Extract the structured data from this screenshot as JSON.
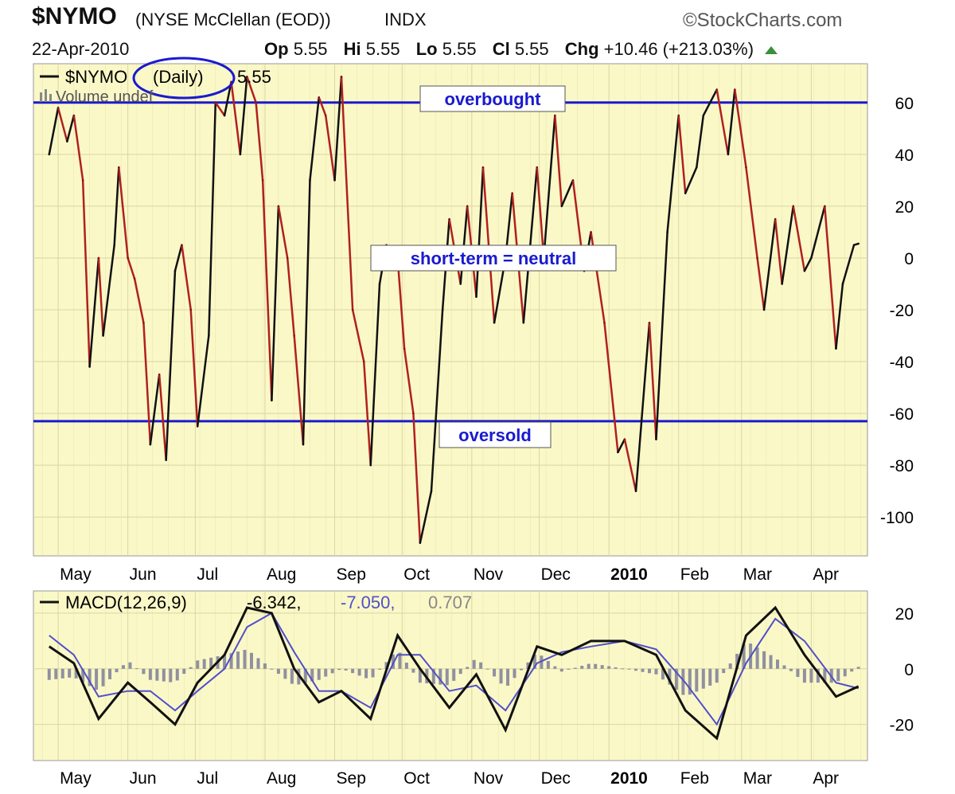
{
  "header": {
    "symbol": "$NYMO",
    "description": "(NYSE McClellan (EOD))",
    "exchange": "INDX",
    "brand": "©StockCharts.com",
    "date": "22-Apr-2010",
    "open_label": "Op",
    "open": "5.55",
    "high_label": "Hi",
    "high": "5.55",
    "low_label": "Lo",
    "low": "5.55",
    "close_label": "Cl",
    "close": "5.55",
    "change_label": "Chg",
    "change": "+10.46 (+213.03%)"
  },
  "colors": {
    "panel_bg": "#fbf8c8",
    "grid": "#d9d6a0",
    "up": "#111111",
    "down": "#b02020",
    "band": "#1a1ad0",
    "macd": "#111111",
    "signal": "#5050c8",
    "hist": "#9090a0",
    "annot_text": "#1a1ad0",
    "circle": "#1a1ad0"
  },
  "icons": {
    "up_arrow": "triangle-up-icon"
  },
  "chart_data": [
    {
      "type": "line",
      "legend_series": "$NYMO",
      "legend_period": "(Daily)",
      "legend_value": "5.55",
      "volume_legend": "Volume undef",
      "x": [
        "2009-04-27",
        "2009-05-01",
        "2009-05-05",
        "2009-05-08",
        "2009-05-12",
        "2009-05-15",
        "2009-05-19",
        "2009-05-21",
        "2009-05-26",
        "2009-05-28",
        "2009-06-01",
        "2009-06-04",
        "2009-06-08",
        "2009-06-11",
        "2009-06-15",
        "2009-06-18",
        "2009-06-22",
        "2009-06-25",
        "2009-06-29",
        "2009-07-02",
        "2009-07-07",
        "2009-07-10",
        "2009-07-14",
        "2009-07-17",
        "2009-07-21",
        "2009-07-24",
        "2009-07-28",
        "2009-07-31",
        "2009-08-04",
        "2009-08-07",
        "2009-08-11",
        "2009-08-14",
        "2009-08-18",
        "2009-08-21",
        "2009-08-25",
        "2009-08-28",
        "2009-09-01",
        "2009-09-04",
        "2009-09-09",
        "2009-09-14",
        "2009-09-17",
        "2009-09-21",
        "2009-09-24",
        "2009-09-29",
        "2009-10-02",
        "2009-10-06",
        "2009-10-09",
        "2009-10-14",
        "2009-10-19",
        "2009-10-22",
        "2009-10-27",
        "2009-10-30",
        "2009-11-03",
        "2009-11-06",
        "2009-11-11",
        "2009-11-16",
        "2009-11-19",
        "2009-11-24",
        "2009-11-30",
        "2009-12-03",
        "2009-12-08",
        "2009-12-11",
        "2009-12-16",
        "2009-12-21",
        "2009-12-24",
        "2009-12-30",
        "2010-01-05",
        "2010-01-08",
        "2010-01-13",
        "2010-01-19",
        "2010-01-22",
        "2010-01-27",
        "2010-02-01",
        "2010-02-04",
        "2010-02-09",
        "2010-02-12",
        "2010-02-18",
        "2010-02-23",
        "2010-02-26",
        "2010-03-03",
        "2010-03-08",
        "2010-03-11",
        "2010-03-16",
        "2010-03-19",
        "2010-03-24",
        "2010-03-29",
        "2010-04-01",
        "2010-04-07",
        "2010-04-12",
        "2010-04-15",
        "2010-04-20",
        "2010-04-22"
      ],
      "values": [
        40,
        58,
        45,
        55,
        30,
        -42,
        0,
        -30,
        5,
        35,
        0,
        -8,
        -25,
        -72,
        -45,
        -78,
        -5,
        5,
        -20,
        -65,
        -30,
        60,
        55,
        68,
        40,
        70,
        60,
        30,
        -55,
        20,
        0,
        -30,
        -72,
        30,
        62,
        55,
        30,
        70,
        -20,
        -40,
        -80,
        -10,
        5,
        0,
        -35,
        -60,
        -110,
        -90,
        -20,
        15,
        -10,
        20,
        -15,
        35,
        -25,
        0,
        25,
        -25,
        35,
        0,
        55,
        20,
        30,
        -5,
        10,
        -25,
        -75,
        -70,
        -90,
        -25,
        -70,
        10,
        55,
        25,
        35,
        55,
        65,
        40,
        65,
        35,
        0,
        -20,
        15,
        -10,
        20,
        -5,
        0,
        20,
        -35,
        -10,
        5,
        5.55
      ],
      "ylim": [
        -115,
        75
      ],
      "yticks": [
        60,
        40,
        20,
        0,
        -20,
        -40,
        -60,
        -80,
        -100
      ],
      "reference_lines": [
        60,
        -63
      ],
      "x_tick_labels": [
        "May",
        "Jun",
        "Jul",
        "Aug",
        "Sep",
        "Oct",
        "Nov",
        "Dec",
        "2010",
        "Feb",
        "Mar",
        "Apr"
      ],
      "annotations": [
        "overbought",
        "short-term = neutral",
        "oversold"
      ],
      "grid": true
    },
    {
      "type": "line",
      "legend_series": "MACD(12,26,9)",
      "legend_macd": "-6.342,",
      "legend_signal": "-7.050,",
      "legend_hist": "0.707",
      "x": [
        "2009-04-27",
        "2009-05-08",
        "2009-05-19",
        "2009-06-01",
        "2009-06-11",
        "2009-06-22",
        "2009-07-02",
        "2009-07-14",
        "2009-07-24",
        "2009-08-04",
        "2009-08-14",
        "2009-08-25",
        "2009-09-04",
        "2009-09-17",
        "2009-09-29",
        "2009-10-09",
        "2009-10-22",
        "2009-11-03",
        "2009-11-16",
        "2009-11-30",
        "2009-12-11",
        "2009-12-24",
        "2010-01-08",
        "2010-01-22",
        "2010-02-04",
        "2010-02-18",
        "2010-03-03",
        "2010-03-16",
        "2010-03-29",
        "2010-04-12",
        "2010-04-22"
      ],
      "macd": [
        8,
        2,
        -18,
        -5,
        -12,
        -20,
        -5,
        5,
        22,
        20,
        0,
        -12,
        -8,
        -18,
        12,
        0,
        -14,
        -2,
        -22,
        8,
        5,
        10,
        10,
        5,
        -15,
        -25,
        12,
        22,
        5,
        -10,
        -6.342
      ],
      "signal": [
        12,
        5,
        -10,
        -8,
        -8,
        -15,
        -8,
        0,
        15,
        20,
        6,
        -8,
        -8,
        -14,
        5,
        5,
        -8,
        -6,
        -15,
        2,
        6,
        8,
        10,
        7,
        -5,
        -20,
        2,
        18,
        10,
        -5,
        -7.05
      ],
      "histogram": [
        -4,
        -3,
        -8,
        3,
        -4,
        -5,
        3,
        5,
        7,
        0,
        -6,
        -4,
        0,
        -4,
        7,
        -5,
        -6,
        4,
        -7,
        6,
        -1,
        2,
        0,
        -2,
        -10,
        -5,
        10,
        4,
        -5,
        -5,
        0.707
      ],
      "ylim": [
        -33,
        28
      ],
      "yticks": [
        20,
        0,
        -20
      ],
      "x_tick_labels": [
        "May",
        "Jun",
        "Jul",
        "Aug",
        "Sep",
        "Oct",
        "Nov",
        "Dec",
        "2010",
        "Feb",
        "Mar",
        "Apr"
      ],
      "grid": true
    }
  ]
}
